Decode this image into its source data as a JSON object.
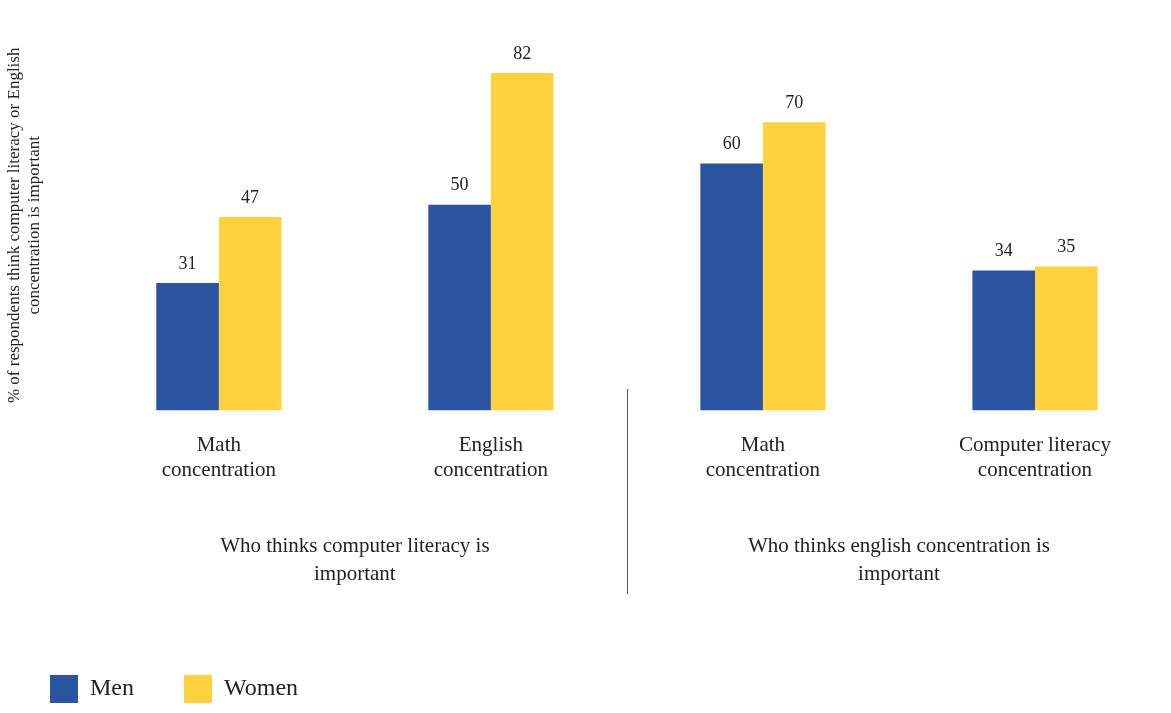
{
  "chart_data": {
    "type": "bar",
    "ylabel": "% of respondents think computer literacy or English concentration is important",
    "categories": [
      "Math concentration",
      "English concentration",
      "Math concentration",
      "Computer literacy concentration"
    ],
    "series": [
      {
        "name": "Men",
        "color": "#2b54a0",
        "values": [
          31,
          50,
          60,
          34
        ]
      },
      {
        "name": "Women",
        "color": "#fdd23e",
        "values": [
          47,
          82,
          70,
          35
        ]
      }
    ],
    "annotations": [
      "Who thinks computer literacy is important",
      "Who thinks english concentration is important"
    ],
    "data_labels": true,
    "legend": "bottom left",
    "grid": false,
    "tick_labels": "x"
  }
}
